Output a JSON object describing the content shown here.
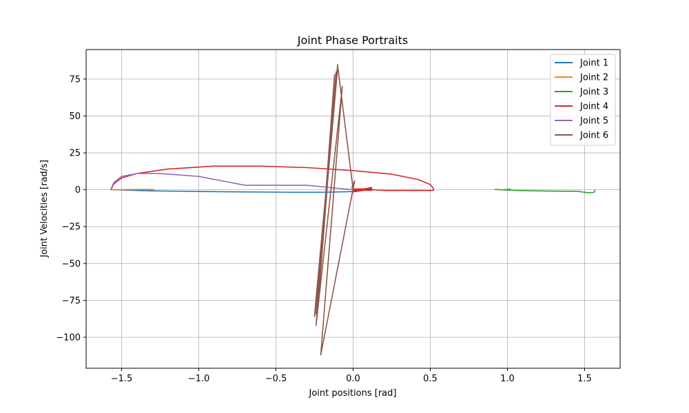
{
  "chart_data": {
    "type": "line",
    "title": "Joint Phase Portraits",
    "xlabel": "Joint positions [rad]",
    "ylabel": "Joint Velocities [rad/s]",
    "xlim": [
      -1.73,
      1.73
    ],
    "ylim": [
      -121,
      95
    ],
    "xticks": [
      -1.5,
      -1.0,
      -0.5,
      0.0,
      0.5,
      1.0,
      1.5
    ],
    "xtick_labels": [
      "−1.5",
      "−1.0",
      "−0.5",
      "0.0",
      "0.5",
      "1.0",
      "1.5"
    ],
    "yticks": [
      -100,
      -75,
      -50,
      -25,
      0,
      25,
      50,
      75
    ],
    "ytick_labels": [
      "−100",
      "−75",
      "−50",
      "−25",
      "0",
      "25",
      "50",
      "75"
    ],
    "grid": true,
    "legend_position": "top-right",
    "series": [
      {
        "name": "Joint 1",
        "color": "#1f77b4",
        "points": [
          [
            -1.57,
            0
          ],
          [
            -1.45,
            -0.3
          ],
          [
            -1.3,
            -0.8
          ],
          [
            -1.0,
            -1.2
          ],
          [
            -0.7,
            -1.5
          ],
          [
            -0.4,
            -1.7
          ],
          [
            -0.2,
            -1.7
          ],
          [
            -0.05,
            -1.4
          ],
          [
            0.0,
            -1.2
          ],
          [
            0.0,
            0
          ]
        ]
      },
      {
        "name": "Joint 2",
        "color": "#ff7f0e",
        "points": [
          [
            -1.57,
            0
          ],
          [
            -1.5,
            0
          ],
          [
            -1.4,
            0.2
          ],
          [
            -1.3,
            0.2
          ],
          [
            -1.29,
            0
          ],
          [
            -1.35,
            0.3
          ],
          [
            -1.3,
            -0.1
          ]
        ]
      },
      {
        "name": "Joint 3",
        "color": "#2ca02c",
        "points": [
          [
            1.57,
            0
          ],
          [
            1.56,
            -1.8
          ],
          [
            1.52,
            -2.0
          ],
          [
            1.45,
            -1.0
          ],
          [
            1.35,
            -1.0
          ],
          [
            1.2,
            -0.8
          ],
          [
            1.05,
            -0.5
          ],
          [
            1.0,
            -0.2
          ],
          [
            0.95,
            0
          ],
          [
            0.92,
            0.2
          ],
          [
            0.97,
            -0.1
          ],
          [
            1.02,
            0.3
          ],
          [
            0.98,
            0
          ]
        ]
      },
      {
        "name": "Joint 4",
        "color": "#d62728",
        "points": [
          [
            -1.57,
            0
          ],
          [
            -1.55,
            4
          ],
          [
            -1.5,
            8
          ],
          [
            -1.4,
            11
          ],
          [
            -1.2,
            14
          ],
          [
            -0.9,
            16
          ],
          [
            -0.6,
            16
          ],
          [
            -0.3,
            15
          ],
          [
            0.0,
            13
          ],
          [
            0.25,
            10.5
          ],
          [
            0.42,
            7
          ],
          [
            0.5,
            3.5
          ],
          [
            0.52,
            1
          ],
          [
            0.52,
            -0.5
          ],
          [
            0.4,
            -0.5
          ],
          [
            0.2,
            -0.5
          ],
          [
            0.12,
            0
          ],
          [
            0.0,
            0
          ],
          [
            0.12,
            1
          ],
          [
            0.0,
            -1
          ],
          [
            0.12,
            1.5
          ],
          [
            0.0,
            -1.5
          ],
          [
            0.12,
            0.5
          ],
          [
            0.0,
            0.5
          ],
          [
            0.12,
            -0.5
          ],
          [
            0.0,
            0
          ]
        ]
      },
      {
        "name": "Joint 5",
        "color": "#9467bd",
        "points": [
          [
            -1.57,
            0
          ],
          [
            -1.55,
            5
          ],
          [
            -1.5,
            9
          ],
          [
            -1.4,
            11
          ],
          [
            -1.25,
            11
          ],
          [
            -1.0,
            9
          ],
          [
            -0.8,
            5
          ],
          [
            -0.7,
            3
          ],
          [
            -0.5,
            3
          ],
          [
            -0.3,
            3
          ],
          [
            -0.1,
            1
          ],
          [
            0.0,
            0
          ]
        ]
      },
      {
        "name": "Joint 6",
        "color": "#8c564b",
        "points": [
          [
            0.0,
            0
          ],
          [
            -0.1,
            84
          ],
          [
            -0.25,
            -86
          ],
          [
            -0.1,
            85
          ],
          [
            -0.25,
            -85
          ],
          [
            -0.1,
            83
          ],
          [
            -0.24,
            -84
          ],
          [
            -0.11,
            80
          ],
          [
            -0.23,
            -82
          ],
          [
            -0.12,
            78
          ],
          [
            -0.24,
            -92
          ],
          [
            -0.07,
            70
          ],
          [
            -0.21,
            -112
          ],
          [
            0.01,
            6
          ],
          [
            -0.01,
            1
          ]
        ]
      }
    ]
  }
}
